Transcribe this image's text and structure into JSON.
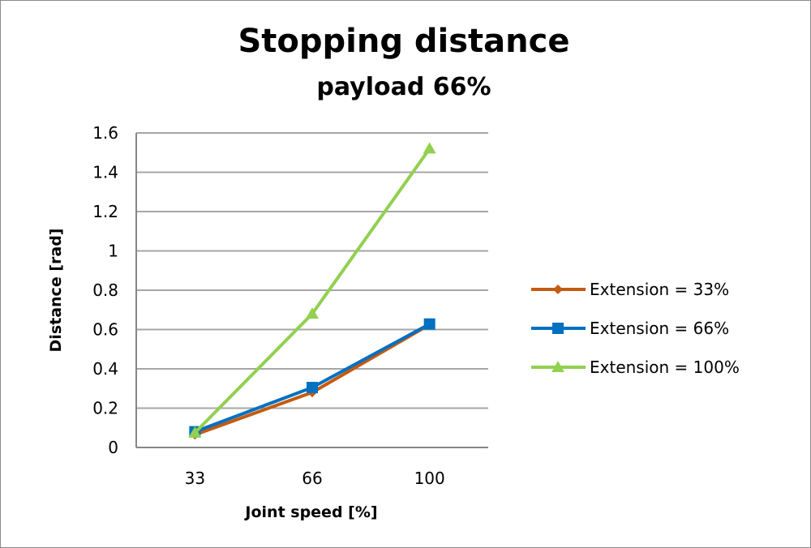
{
  "chart_data": {
    "type": "line",
    "title": "Stopping distance",
    "subtitle": "payload 66%",
    "xlabel": "Joint speed [%]",
    "ylabel": "Distance [rad]",
    "categories": [
      "33",
      "66",
      "100"
    ],
    "ylim": [
      0,
      1.6
    ],
    "yticks": [
      "0",
      "0.2",
      "0.4",
      "0.6",
      "0.8",
      "1",
      "1.2",
      "1.4",
      "1.6"
    ],
    "grid": true,
    "legend_position": "right",
    "series": [
      {
        "name": "Extension = 33%",
        "values": [
          0.065,
          0.28,
          0.625
        ],
        "color": "#c55a11",
        "marker": "diamond"
      },
      {
        "name": "Extension = 66%",
        "values": [
          0.08,
          0.305,
          0.628
        ],
        "color": "#0070c0",
        "marker": "square"
      },
      {
        "name": "Extension = 100%",
        "values": [
          0.075,
          0.68,
          1.52
        ],
        "color": "#92d050",
        "marker": "triangle"
      }
    ]
  }
}
